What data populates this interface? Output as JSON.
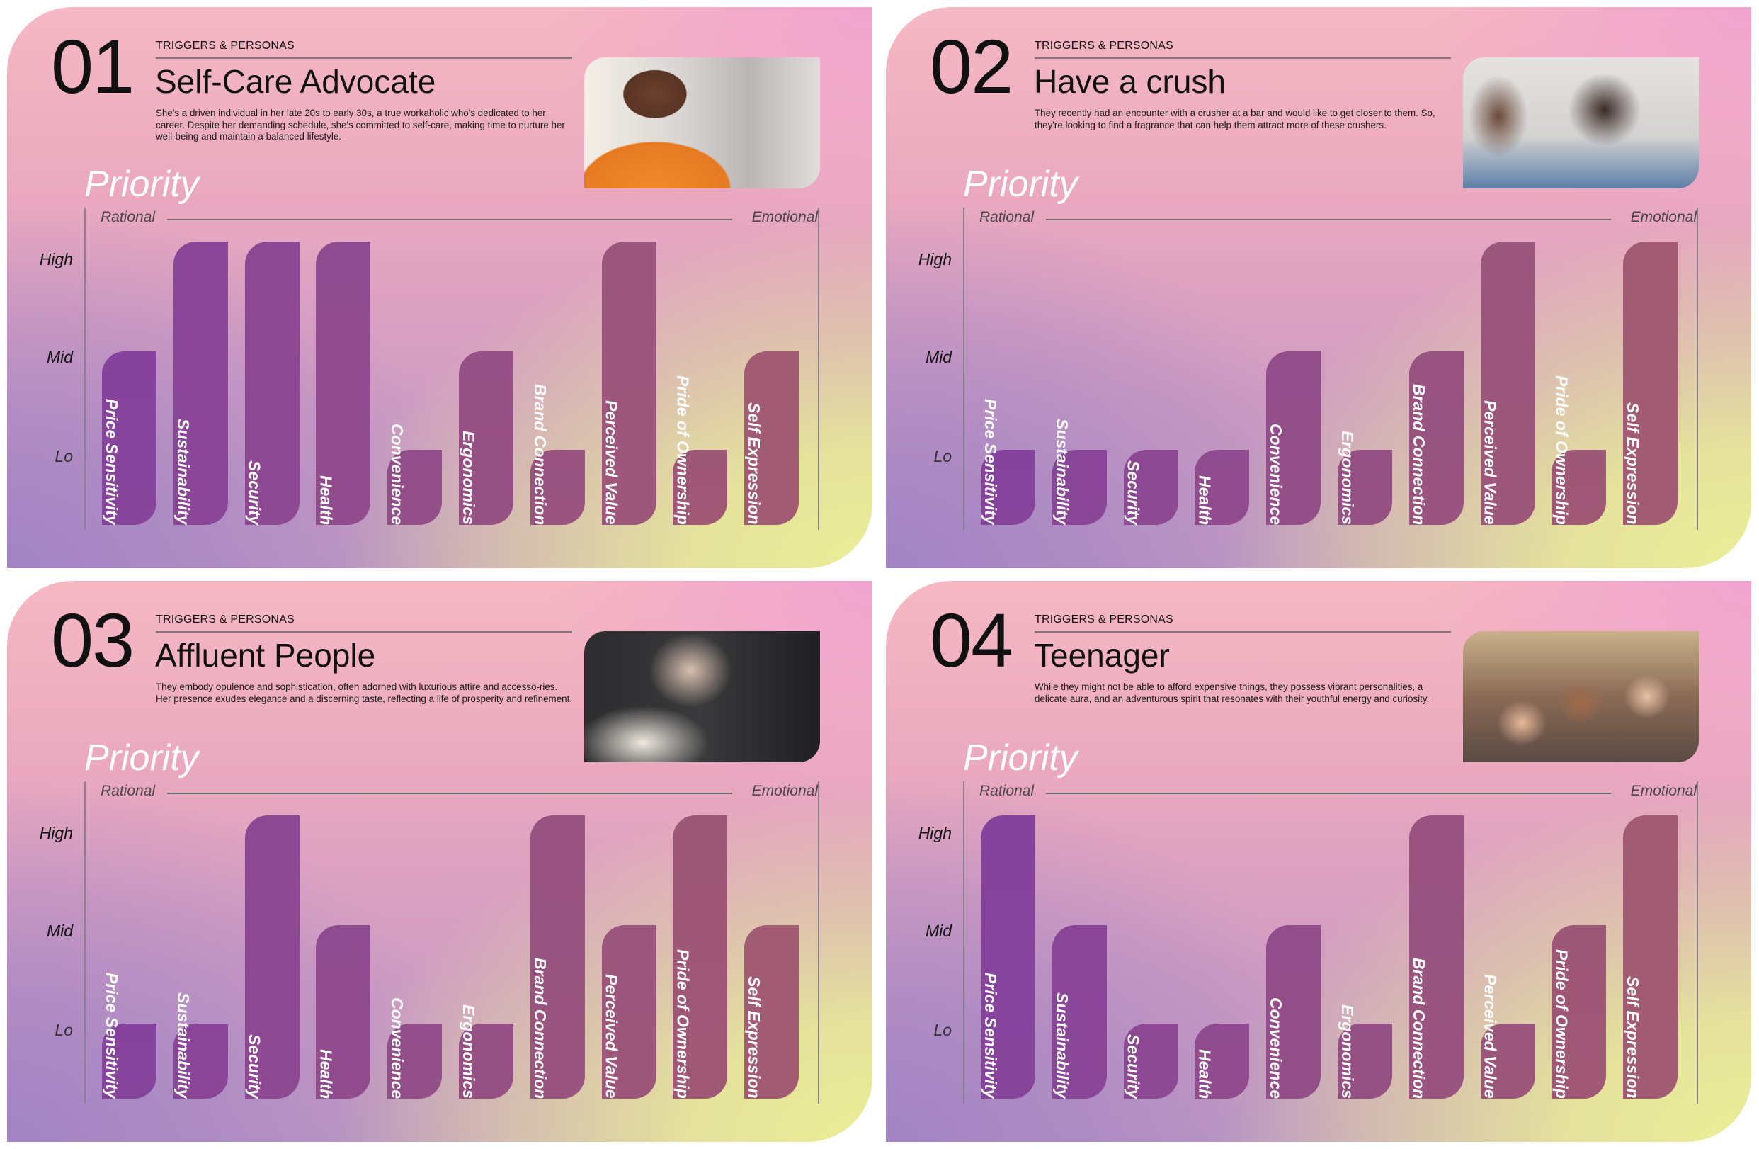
{
  "colors": {
    "bar_start": "#86439d",
    "bar_end": "#a15b72"
  },
  "common": {
    "eyebrow": "TRIGGERS & PERSONAS",
    "priority": "Priority",
    "rational": "Rational",
    "emotional": "Emotional",
    "levels": [
      "High",
      "Mid",
      "Lo"
    ],
    "categories": [
      "Price Sensitivity",
      "Sustainability",
      "Security",
      "Health",
      "Convenience",
      "Ergonomics",
      "Brand Connection",
      "Perceived Value",
      "Pride of Ownership",
      "Self Expression"
    ]
  },
  "personas": [
    {
      "number": "01",
      "title": "Self-Care Advocate",
      "description": "She's a driven individual in her late 20s to early 30s, a true workaholic who's dedicated to her career. Despite her demanding schedule, she's committed to self-care, making time to nurture her well-being and maintain a balanced lifestyle.",
      "photo": "woman-orange-sweater-hands-on-heart"
    },
    {
      "number": "02",
      "title": "Have a crush",
      "description": "They recently had an encounter with a crusher at a bar and would like to get closer to them. So, they're looking to find a fragrance that can help them attract more of these crushers.",
      "photo": "young-couple-smiling"
    },
    {
      "number": "03",
      "title": "Affluent People",
      "description": "They embody opulence and sophistication, often adorned with luxurious attire and accesso-ries. Her presence exudes elegance and a discerning taste, reflecting a life of prosperity and refinement.",
      "photo": "elegant-older-woman-on-sofa"
    },
    {
      "number": "04",
      "title": "Teenager",
      "description": "While they might not be able to afford expensive things, they possess vibrant personalities, a delicate aura, and an adventurous spirit that resonates with their youthful energy and curiosity.",
      "photo": "group-of-teen-friends-selfie"
    }
  ],
  "chart_data": [
    {
      "type": "bar",
      "title": "Priority",
      "xlabel": "Rational → Emotional",
      "ylabel": "",
      "y_levels": [
        "Lo",
        "Mid",
        "High"
      ],
      "categories": [
        "Price Sensitivity",
        "Sustainability",
        "Security",
        "Health",
        "Convenience",
        "Ergonomics",
        "Brand Connection",
        "Perceived Value",
        "Pride of Ownership",
        "Self Expression"
      ],
      "values": [
        "Mid",
        "High",
        "High",
        "High",
        "Lo",
        "Mid",
        "Lo",
        "High",
        "Lo",
        "Mid"
      ]
    },
    {
      "type": "bar",
      "title": "Priority",
      "xlabel": "Rational → Emotional",
      "ylabel": "",
      "y_levels": [
        "Lo",
        "Mid",
        "High"
      ],
      "categories": [
        "Price Sensitivity",
        "Sustainability",
        "Security",
        "Health",
        "Convenience",
        "Ergonomics",
        "Brand Connection",
        "Perceived Value",
        "Pride of Ownership",
        "Self Expression"
      ],
      "values": [
        "Lo",
        "Lo",
        "Lo",
        "Lo",
        "Mid",
        "Lo",
        "Mid",
        "High",
        "Lo",
        "High"
      ]
    },
    {
      "type": "bar",
      "title": "Priority",
      "xlabel": "Rational → Emotional",
      "ylabel": "",
      "y_levels": [
        "Lo",
        "Mid",
        "High"
      ],
      "categories": [
        "Price Sensitivity",
        "Sustainability",
        "Security",
        "Health",
        "Convenience",
        "Ergonomics",
        "Brand Connection",
        "Perceived Value",
        "Pride of Ownership",
        "Self Expression"
      ],
      "values": [
        "Lo",
        "Lo",
        "High",
        "Mid",
        "Lo",
        "Lo",
        "High",
        "Mid",
        "High",
        "Mid"
      ]
    },
    {
      "type": "bar",
      "title": "Priority",
      "xlabel": "Rational → Emotional",
      "ylabel": "",
      "y_levels": [
        "Lo",
        "Mid",
        "High"
      ],
      "categories": [
        "Price Sensitivity",
        "Sustainability",
        "Security",
        "Health",
        "Convenience",
        "Ergonomics",
        "Brand Connection",
        "Perceived Value",
        "Pride of Ownership",
        "Self Expression"
      ],
      "values": [
        "High",
        "Mid",
        "Lo",
        "Lo",
        "Mid",
        "Lo",
        "High",
        "Lo",
        "Mid",
        "High"
      ]
    }
  ]
}
